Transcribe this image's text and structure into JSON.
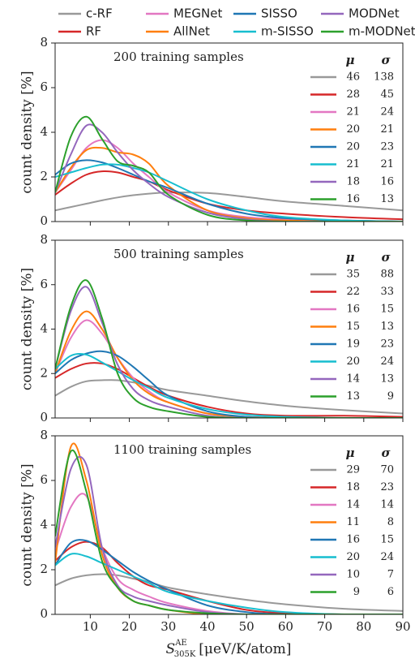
{
  "chart_data": [
    {
      "type": "line",
      "title": "200 training samples",
      "y_label": "count density [%]",
      "x": [
        1,
        5,
        9,
        13,
        17,
        21,
        25,
        30,
        40,
        50,
        60,
        75,
        90
      ],
      "xlim": [
        1,
        90
      ],
      "xticks": [
        10,
        20,
        30,
        40,
        50,
        60,
        70,
        80,
        90
      ],
      "ylim": [
        0,
        8
      ],
      "yticks": [
        0,
        2,
        4,
        6,
        8
      ],
      "stats_headers": [
        "μ",
        "σ"
      ],
      "series": [
        {
          "name": "c-RF",
          "color": "#999999",
          "mu": 46,
          "sigma": 138,
          "values": [
            0.5,
            0.65,
            0.8,
            0.95,
            1.08,
            1.18,
            1.25,
            1.3,
            1.28,
            1.1,
            0.9,
            0.7,
            0.5
          ]
        },
        {
          "name": "RF",
          "color": "#d62728",
          "mu": 28,
          "sigma": 45,
          "values": [
            1.2,
            1.7,
            2.1,
            2.25,
            2.2,
            2.0,
            1.8,
            1.4,
            0.8,
            0.5,
            0.35,
            0.2,
            0.1
          ]
        },
        {
          "name": "MEGNet",
          "color": "#e377c2",
          "mu": 21,
          "sigma": 24,
          "values": [
            1.3,
            2.3,
            3.3,
            3.65,
            3.3,
            2.6,
            2.0,
            1.3,
            0.5,
            0.2,
            0.1,
            0.05,
            0
          ]
        },
        {
          "name": "AllNet",
          "color": "#ff7f0e",
          "mu": 20,
          "sigma": 21,
          "values": [
            1.3,
            2.4,
            3.2,
            3.3,
            3.1,
            3.0,
            2.6,
            1.6,
            0.5,
            0.15,
            0.05,
            0,
            0
          ]
        },
        {
          "name": "SISSO",
          "color": "#1f77b4",
          "mu": 20,
          "sigma": 23,
          "values": [
            2.1,
            2.6,
            2.75,
            2.65,
            2.4,
            2.1,
            1.8,
            1.5,
            0.8,
            0.35,
            0.15,
            0.05,
            0
          ]
        },
        {
          "name": "m-SISSO",
          "color": "#17becf",
          "mu": 21,
          "sigma": 21,
          "values": [
            2.0,
            2.2,
            2.4,
            2.55,
            2.55,
            2.4,
            2.2,
            1.8,
            1.0,
            0.5,
            0.2,
            0.05,
            0
          ]
        },
        {
          "name": "MODNet",
          "color": "#9467bd",
          "mu": 18,
          "sigma": 16,
          "values": [
            1.3,
            3.0,
            4.3,
            4.0,
            3.1,
            2.3,
            1.7,
            1.1,
            0.4,
            0.1,
            0,
            0,
            0
          ]
        },
        {
          "name": "m-MODNet",
          "color": "#2ca02c",
          "mu": 16,
          "sigma": 13,
          "values": [
            1.3,
            3.8,
            4.7,
            3.7,
            2.7,
            2.5,
            2.2,
            1.2,
            0.3,
            0.05,
            0,
            0,
            0
          ]
        }
      ]
    },
    {
      "type": "line",
      "title": "500 training samples",
      "y_label": "count density [%]",
      "x": [
        1,
        5,
        9,
        13,
        17,
        21,
        25,
        30,
        40,
        50,
        60,
        75,
        90
      ],
      "xlim": [
        1,
        90
      ],
      "xticks": [
        10,
        20,
        30,
        40,
        50,
        60,
        70,
        80,
        90
      ],
      "ylim": [
        0,
        8
      ],
      "yticks": [
        0,
        2,
        4,
        6,
        8
      ],
      "stats_headers": [
        "μ",
        "σ"
      ],
      "series": [
        {
          "name": "c-RF",
          "color": "#999999",
          "mu": 35,
          "sigma": 88,
          "values": [
            1.0,
            1.4,
            1.65,
            1.7,
            1.7,
            1.6,
            1.45,
            1.25,
            1.0,
            0.75,
            0.55,
            0.35,
            0.2
          ]
        },
        {
          "name": "RF",
          "color": "#d62728",
          "mu": 22,
          "sigma": 33,
          "values": [
            1.8,
            2.2,
            2.45,
            2.45,
            2.2,
            1.8,
            1.4,
            1.0,
            0.5,
            0.2,
            0.1,
            0.1,
            0.05
          ]
        },
        {
          "name": "MEGNet",
          "color": "#e377c2",
          "mu": 16,
          "sigma": 15,
          "values": [
            2.0,
            3.6,
            4.4,
            3.8,
            2.7,
            1.8,
            1.2,
            0.7,
            0.2,
            0.05,
            0,
            0,
            0
          ]
        },
        {
          "name": "AllNet",
          "color": "#ff7f0e",
          "mu": 15,
          "sigma": 13,
          "values": [
            2.0,
            3.9,
            4.8,
            4.0,
            2.7,
            1.7,
            1.1,
            0.7,
            0.2,
            0.05,
            0,
            0,
            0
          ]
        },
        {
          "name": "SISSO",
          "color": "#1f77b4",
          "mu": 19,
          "sigma": 23,
          "values": [
            2.0,
            2.6,
            2.9,
            3.0,
            2.8,
            2.3,
            1.7,
            1.0,
            0.3,
            0.05,
            0,
            0,
            0
          ]
        },
        {
          "name": "m-SISSO",
          "color": "#17becf",
          "mu": 20,
          "sigma": 24,
          "values": [
            2.2,
            2.8,
            2.85,
            2.5,
            2.1,
            1.7,
            1.35,
            0.9,
            0.4,
            0.15,
            0.05,
            0,
            0
          ]
        },
        {
          "name": "MODNet",
          "color": "#9467bd",
          "mu": 14,
          "sigma": 13,
          "values": [
            2.2,
            4.8,
            5.9,
            4.3,
            2.4,
            1.3,
            0.8,
            0.5,
            0.1,
            0,
            0,
            0,
            0
          ]
        },
        {
          "name": "m-MODNet",
          "color": "#2ca02c",
          "mu": 13,
          "sigma": 9,
          "values": [
            2.2,
            5.0,
            6.2,
            4.5,
            2.0,
            0.9,
            0.5,
            0.3,
            0.05,
            0,
            0,
            0,
            0
          ]
        }
      ]
    },
    {
      "type": "line",
      "title": "1100 training samples",
      "y_label": "count density [%]",
      "x_label": {
        "symbol": "S",
        "superscript": "AE",
        "subscript": "305K",
        "unit": "[μeV/K/atom]"
      },
      "x": [
        1,
        5,
        9,
        13,
        17,
        21,
        25,
        30,
        40,
        50,
        60,
        75,
        90
      ],
      "xlim": [
        1,
        90
      ],
      "xticks": [
        10,
        20,
        30,
        40,
        50,
        60,
        70,
        80,
        90
      ],
      "ylim": [
        0,
        8
      ],
      "yticks": [
        0,
        2,
        4,
        6,
        8
      ],
      "stats_headers": [
        "μ",
        "σ"
      ],
      "series": [
        {
          "name": "c-RF",
          "color": "#999999",
          "mu": 29,
          "sigma": 70,
          "values": [
            1.3,
            1.6,
            1.75,
            1.8,
            1.75,
            1.6,
            1.45,
            1.2,
            0.9,
            0.65,
            0.45,
            0.25,
            0.15
          ]
        },
        {
          "name": "RF",
          "color": "#d62728",
          "mu": 18,
          "sigma": 23,
          "values": [
            2.4,
            3.0,
            3.25,
            3.0,
            2.3,
            1.7,
            1.3,
            1.1,
            0.6,
            0.2,
            0.05,
            0,
            0
          ]
        },
        {
          "name": "MEGNet",
          "color": "#e377c2",
          "mu": 14,
          "sigma": 14,
          "values": [
            2.8,
            4.8,
            5.3,
            3.0,
            1.6,
            1.1,
            0.8,
            0.5,
            0.15,
            0,
            0,
            0,
            0
          ]
        },
        {
          "name": "AllNet",
          "color": "#ff7f0e",
          "mu": 11,
          "sigma": 8,
          "values": [
            2.3,
            7.5,
            6.0,
            2.7,
            1.2,
            0.6,
            0.4,
            0.2,
            0,
            0,
            0,
            0,
            0
          ]
        },
        {
          "name": "SISSO",
          "color": "#1f77b4",
          "mu": 16,
          "sigma": 15,
          "values": [
            2.2,
            3.2,
            3.3,
            2.9,
            2.4,
            1.9,
            1.5,
            1.1,
            0.4,
            0.1,
            0,
            0,
            0
          ]
        },
        {
          "name": "m-SISSO",
          "color": "#17becf",
          "mu": 20,
          "sigma": 24,
          "values": [
            2.2,
            2.7,
            2.6,
            2.3,
            2.0,
            1.7,
            1.4,
            1.0,
            0.6,
            0.3,
            0.1,
            0,
            0
          ]
        },
        {
          "name": "MODNet",
          "color": "#9467bd",
          "mu": 10,
          "sigma": 7,
          "values": [
            3.0,
            6.5,
            6.7,
            3.0,
            1.3,
            0.8,
            0.6,
            0.4,
            0.1,
            0,
            0,
            0,
            0
          ]
        },
        {
          "name": "m-MODNet",
          "color": "#2ca02c",
          "mu": 9,
          "sigma": 6,
          "values": [
            3.5,
            7.3,
            5.5,
            2.4,
            1.2,
            0.6,
            0.4,
            0.2,
            0.05,
            0,
            0,
            0,
            0
          ]
        }
      ]
    }
  ]
}
